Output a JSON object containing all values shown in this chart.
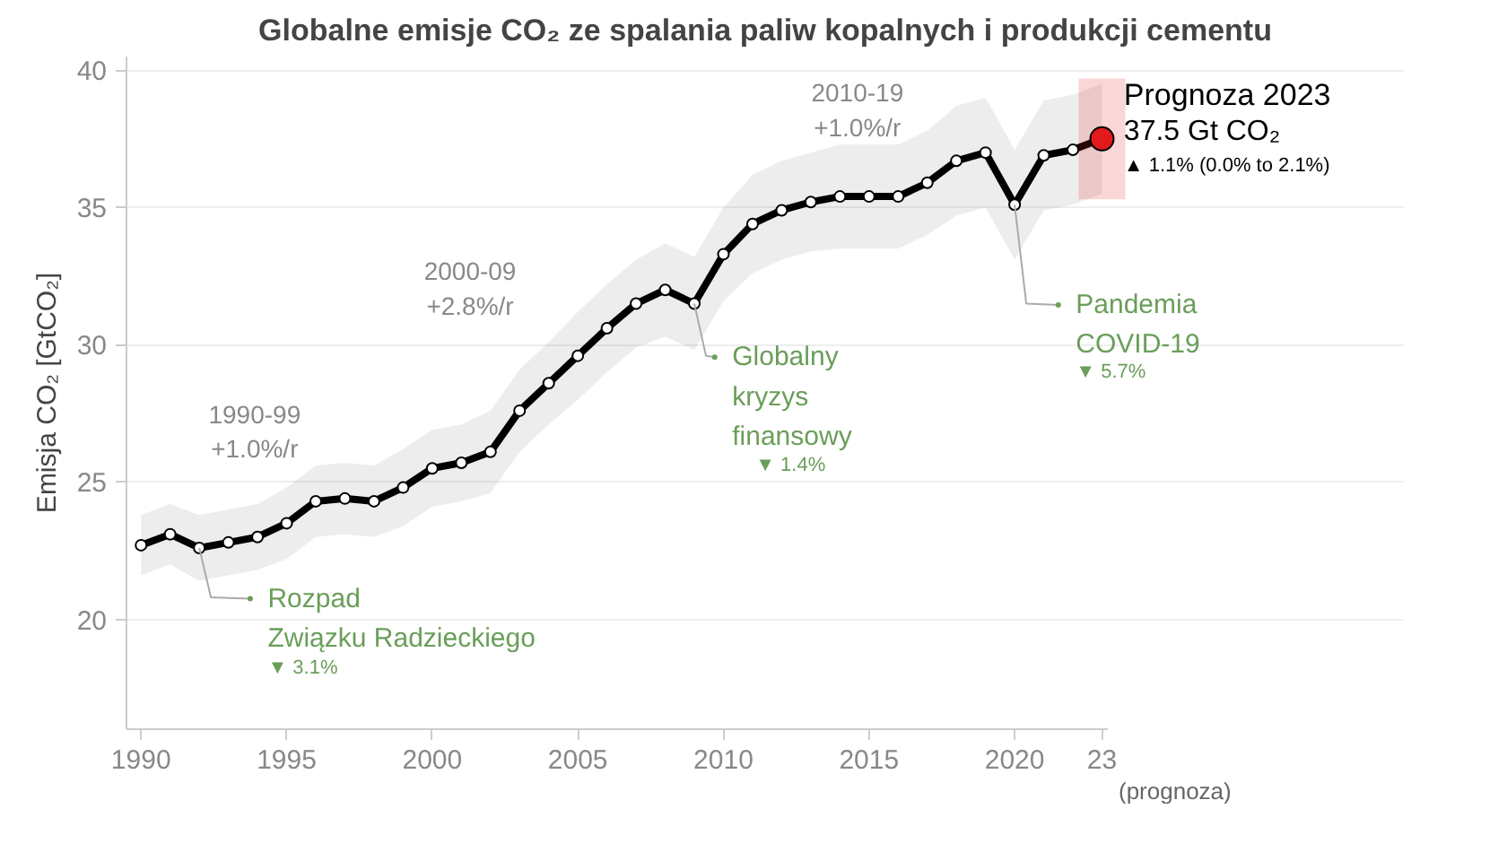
{
  "chart_data": {
    "type": "line",
    "title": "Globalne emisje CO₂ ze spalania paliw kopalnych i produkcji cementu",
    "ylabel": "Emisja CO₂ [GtCO₂]",
    "xlabel": "(prognoza)",
    "x": [
      1990,
      1991,
      1992,
      1993,
      1994,
      1995,
      1996,
      1997,
      1998,
      1999,
      2000,
      2001,
      2002,
      2003,
      2004,
      2005,
      2006,
      2007,
      2008,
      2009,
      2010,
      2011,
      2012,
      2013,
      2014,
      2015,
      2016,
      2017,
      2018,
      2019,
      2020,
      2021,
      2022,
      2023
    ],
    "series": [
      {
        "color": "#000000",
        "values": [
          22.7,
          23.1,
          22.6,
          22.8,
          23.0,
          23.5,
          24.3,
          24.4,
          24.3,
          24.8,
          25.5,
          25.7,
          26.1,
          27.6,
          28.6,
          29.6,
          30.6,
          31.5,
          32.0,
          31.5,
          33.3,
          34.4,
          34.9,
          35.2,
          35.4,
          35.4,
          35.4,
          35.9,
          36.7,
          37.0,
          35.1,
          36.9,
          37.1,
          37.5
        ],
        "lower": [
          21.6,
          22.0,
          21.4,
          21.6,
          21.8,
          22.2,
          23.0,
          23.1,
          23.0,
          23.4,
          24.1,
          24.3,
          24.6,
          26.1,
          27.1,
          28.0,
          29.0,
          29.9,
          30.3,
          29.8,
          31.6,
          32.6,
          33.1,
          33.4,
          33.5,
          33.5,
          33.5,
          34.0,
          34.7,
          35.0,
          33.1,
          34.9,
          35.1,
          35.5
        ],
        "upper": [
          23.8,
          24.2,
          23.8,
          24.0,
          24.2,
          24.8,
          25.6,
          25.7,
          25.6,
          26.2,
          26.9,
          27.1,
          27.6,
          29.1,
          30.1,
          31.2,
          32.2,
          33.1,
          33.7,
          33.2,
          35.0,
          36.2,
          36.7,
          37.0,
          37.3,
          37.3,
          37.3,
          37.8,
          38.7,
          39.0,
          37.1,
          38.9,
          39.1,
          39.5
        ]
      },
      {
        "type": "scatter",
        "color": "#e31a1c",
        "x": [
          2023
        ],
        "values": [
          37.5
        ],
        "errors": [
          [
            35.3,
            39.7
          ]
        ]
      }
    ],
    "xlim": [
      1989.5,
      2023.2
    ],
    "ylim": [
      16,
      40.5
    ],
    "xticks": [
      1990,
      1995,
      2000,
      2005,
      2010,
      2015,
      2020,
      {
        "value": 2023,
        "label": "23"
      }
    ],
    "yticks": [
      20,
      25,
      30,
      35,
      40
    ],
    "grid": "y",
    "marker": "circle",
    "line_style": "solid",
    "annotations": [
      {
        "text": "Rozpad\nZwiązku Radzieckiego",
        "x": 1992,
        "y": 22.6
      },
      "▼ 3.1%",
      {
        "text": "Globalny\nkryzys\nfinansowy",
        "x": 2009,
        "y": 31.5
      },
      "▼ 1.4%",
      {
        "text": "Pandemia\nCOVID-19",
        "x": 2020,
        "y": 35.1
      },
      "▼ 5.7%",
      "Prognoza 2023",
      "37.5 Gt CO₂",
      "▲ 1.1% (0.0% to 2.1%)",
      "1990-99\n+1.0%/r",
      "2000-09\n+2.8%/r",
      "2010-19\n+1.0%/r"
    ]
  }
}
